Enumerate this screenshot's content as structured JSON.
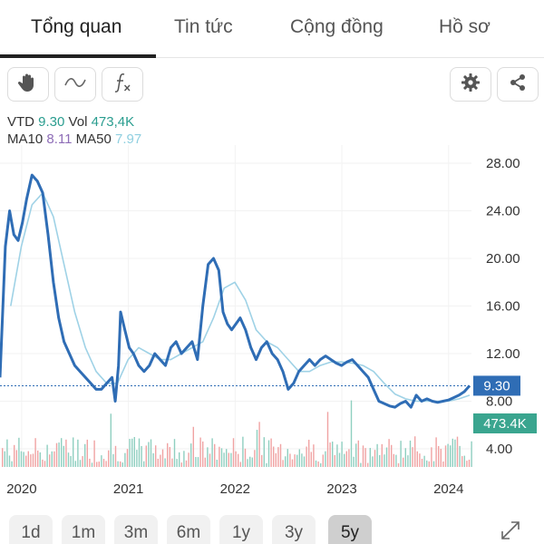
{
  "tabs": [
    {
      "label": "Tổng quan",
      "active": true
    },
    {
      "label": "Tin tức",
      "active": false
    },
    {
      "label": "Cộng đồng",
      "active": false
    },
    {
      "label": "Hồ sơ",
      "active": false
    }
  ],
  "toolbar": {
    "left_icons": [
      "hand-draw-icon",
      "wave-line-icon",
      "function-icon"
    ],
    "right_icons": [
      "gear-icon",
      "share-icon"
    ]
  },
  "legend": {
    "symbol": "VTD",
    "price": "9.30",
    "vol_label": "Vol",
    "vol": "473,4K",
    "ma10_label": "MA10",
    "ma10": "8.11",
    "ma50_label": "MA50",
    "ma50": "7.97"
  },
  "chart_data": {
    "type": "line",
    "x_tick_labels": [
      "2020",
      "2021",
      "2022",
      "2023",
      "2024"
    ],
    "y_tick_labels": [
      "28.00",
      "24.00",
      "20.00",
      "16.00",
      "12.00",
      "8.00",
      "4.00"
    ],
    "ylim": [
      2.5,
      29.5
    ],
    "last_price_label": "9.30",
    "last_price": 9.3,
    "volume_label": "473.4K",
    "colors": {
      "price": "#2f6db5",
      "ma": "#9fd2e6",
      "vol_up": "#8fcfc0",
      "vol_down": "#f0a3a3",
      "price_tag": "#2f6db5",
      "vol_tag": "#3aa58f"
    },
    "series": [
      {
        "x": [
          2019.95,
          2020.0,
          2020.04,
          2020.08,
          2020.12,
          2020.16,
          2020.2,
          2020.25,
          2020.3,
          2020.35,
          2020.4,
          2020.45,
          2020.5,
          2020.55,
          2020.6,
          2020.65,
          2020.7,
          2020.75,
          2020.8,
          2020.85,
          2020.9,
          2020.95,
          2021.0,
          2021.03,
          2021.06,
          2021.08,
          2021.12,
          2021.16,
          2021.2,
          2021.25,
          2021.3,
          2021.35,
          2021.4,
          2021.45,
          2021.5,
          2021.55,
          2021.6,
          2021.65,
          2021.7,
          2021.75,
          2021.8,
          2021.85,
          2021.9,
          2021.95,
          2022.0,
          2022.04,
          2022.08,
          2022.12,
          2022.16,
          2022.2,
          2022.25,
          2022.3,
          2022.35,
          2022.4,
          2022.45,
          2022.5,
          2022.55,
          2022.6,
          2022.65,
          2022.7,
          2022.75,
          2022.8,
          2022.85,
          2022.9,
          2022.95,
          2023.0,
          2023.05,
          2023.1,
          2023.15,
          2023.2,
          2023.25,
          2023.3,
          2023.35,
          2023.4,
          2023.45,
          2023.5,
          2023.55,
          2023.6,
          2023.65,
          2023.7,
          2023.75,
          2023.8,
          2023.85,
          2023.9,
          2023.95,
          2024.0,
          2024.05,
          2024.1,
          2024.15,
          2024.2,
          2024.25,
          2024.3,
          2024.35
        ],
        "values": [
          10.0,
          21.0,
          24.0,
          22.0,
          21.5,
          23.0,
          25.0,
          27.0,
          26.5,
          25.5,
          22.0,
          18.0,
          15.0,
          13.0,
          12.0,
          11.0,
          10.5,
          10.0,
          9.5,
          9.0,
          9.0,
          9.5,
          10.0,
          8.0,
          11.0,
          15.5,
          14.0,
          12.5,
          12.0,
          11.0,
          10.5,
          11.0,
          12.0,
          11.5,
          11.0,
          12.5,
          13.0,
          12.0,
          12.5,
          13.0,
          11.5,
          16.0,
          19.5,
          20.0,
          19.0,
          15.5,
          14.5,
          14.0,
          14.5,
          15.0,
          14.0,
          12.5,
          11.5,
          12.5,
          13.0,
          12.0,
          11.5,
          10.5,
          9.0,
          9.5,
          10.5,
          11.0,
          11.5,
          11.0,
          11.5,
          11.8,
          11.5,
          11.2,
          11.0,
          11.3,
          11.5,
          11.0,
          10.5,
          10.0,
          9.0,
          8.0,
          7.8,
          7.6,
          7.5,
          7.8,
          8.0,
          7.5,
          8.5,
          8.0,
          8.2,
          8.0,
          7.9,
          8.0,
          8.1,
          8.3,
          8.5,
          8.8,
          9.3
        ],
        "color": "#2f6db5"
      },
      {
        "x": [
          2020.05,
          2020.15,
          2020.25,
          2020.35,
          2020.45,
          2020.55,
          2020.65,
          2020.75,
          2020.85,
          2020.95,
          2021.05,
          2021.15,
          2021.25,
          2021.35,
          2021.45,
          2021.55,
          2021.65,
          2021.75,
          2021.85,
          2021.95,
          2022.05,
          2022.15,
          2022.25,
          2022.35,
          2022.45,
          2022.55,
          2022.65,
          2022.75,
          2022.85,
          2022.95,
          2023.05,
          2023.15,
          2023.25,
          2023.35,
          2023.45,
          2023.55,
          2023.65,
          2023.75,
          2023.85,
          2023.95,
          2024.05,
          2024.15,
          2024.25,
          2024.35
        ],
        "values": [
          16.0,
          21.0,
          24.5,
          25.5,
          23.5,
          19.5,
          15.5,
          12.5,
          10.5,
          9.5,
          9.5,
          11.5,
          12.5,
          12.0,
          11.5,
          11.5,
          12.0,
          12.5,
          13.0,
          15.0,
          17.5,
          18.0,
          16.5,
          14.0,
          13.0,
          12.5,
          11.5,
          10.5,
          10.5,
          11.0,
          11.3,
          11.3,
          11.2,
          11.0,
          10.5,
          9.5,
          8.6,
          8.2,
          8.0,
          8.0,
          8.0,
          8.0,
          8.2,
          8.5
        ],
        "color": "#9fd2e6"
      }
    ]
  }
}
